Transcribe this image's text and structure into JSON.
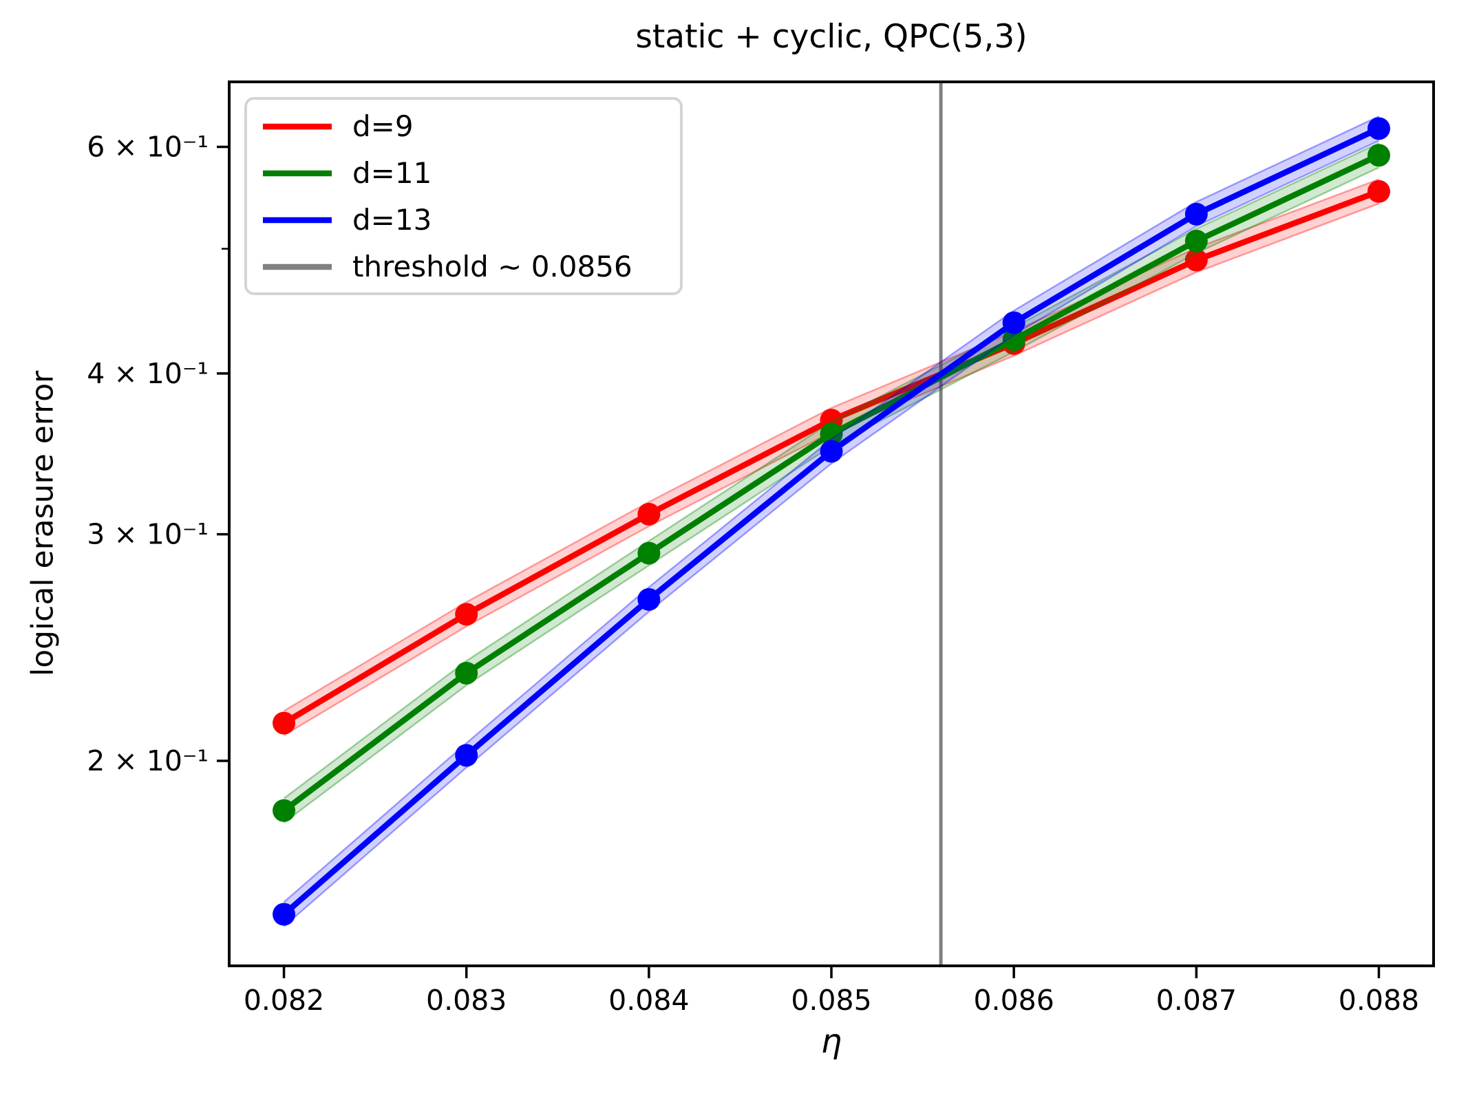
{
  "chart_data": {
    "type": "line",
    "title": "static + cyclic, QPC(5,3)",
    "xlabel": "η",
    "ylabel": "logical erasure error",
    "yscale": "log",
    "grid": false,
    "legend_position": "upper left",
    "xlim": [
      0.0817,
      0.0883
    ],
    "ylim": [
      0.1386,
      0.674
    ],
    "x": [
      0.082,
      0.083,
      0.084,
      0.085,
      0.086,
      0.087,
      0.088
    ],
    "series": [
      {
        "name": "d=9",
        "color": "#ff0000",
        "values": [
          0.214,
          0.26,
          0.311,
          0.368,
          0.422,
          0.49,
          0.554
        ]
      },
      {
        "name": "d=11",
        "color": "#008000",
        "values": [
          0.183,
          0.234,
          0.29,
          0.359,
          0.425,
          0.507,
          0.591
        ]
      },
      {
        "name": "d=13",
        "color": "#0000ff",
        "values": [
          0.152,
          0.202,
          0.267,
          0.348,
          0.438,
          0.532,
          0.62
        ]
      }
    ],
    "band_rel": 0.022,
    "threshold": {
      "label": "threshold ~ 0.0856",
      "x": 0.0856,
      "color": "#808080"
    },
    "xticks": [
      {
        "value": 0.082,
        "label": "0.082"
      },
      {
        "value": 0.083,
        "label": "0.083"
      },
      {
        "value": 0.084,
        "label": "0.084"
      },
      {
        "value": 0.085,
        "label": "0.085"
      },
      {
        "value": 0.086,
        "label": "0.086"
      },
      {
        "value": 0.087,
        "label": "0.087"
      },
      {
        "value": 0.088,
        "label": "0.088"
      }
    ],
    "yticks": [
      {
        "value": 0.6,
        "label": "6 × 10⁻¹"
      },
      {
        "value": 0.4,
        "label": "4 × 10⁻¹"
      },
      {
        "value": 0.3,
        "label": "3 × 10⁻¹"
      },
      {
        "value": 0.2,
        "label": "2 × 10⁻¹"
      }
    ],
    "yticks_minor": [
      0.5
    ]
  },
  "colors": {
    "axis": "#000000",
    "legend_border": "#d4d4d4",
    "background": "#ffffff"
  }
}
